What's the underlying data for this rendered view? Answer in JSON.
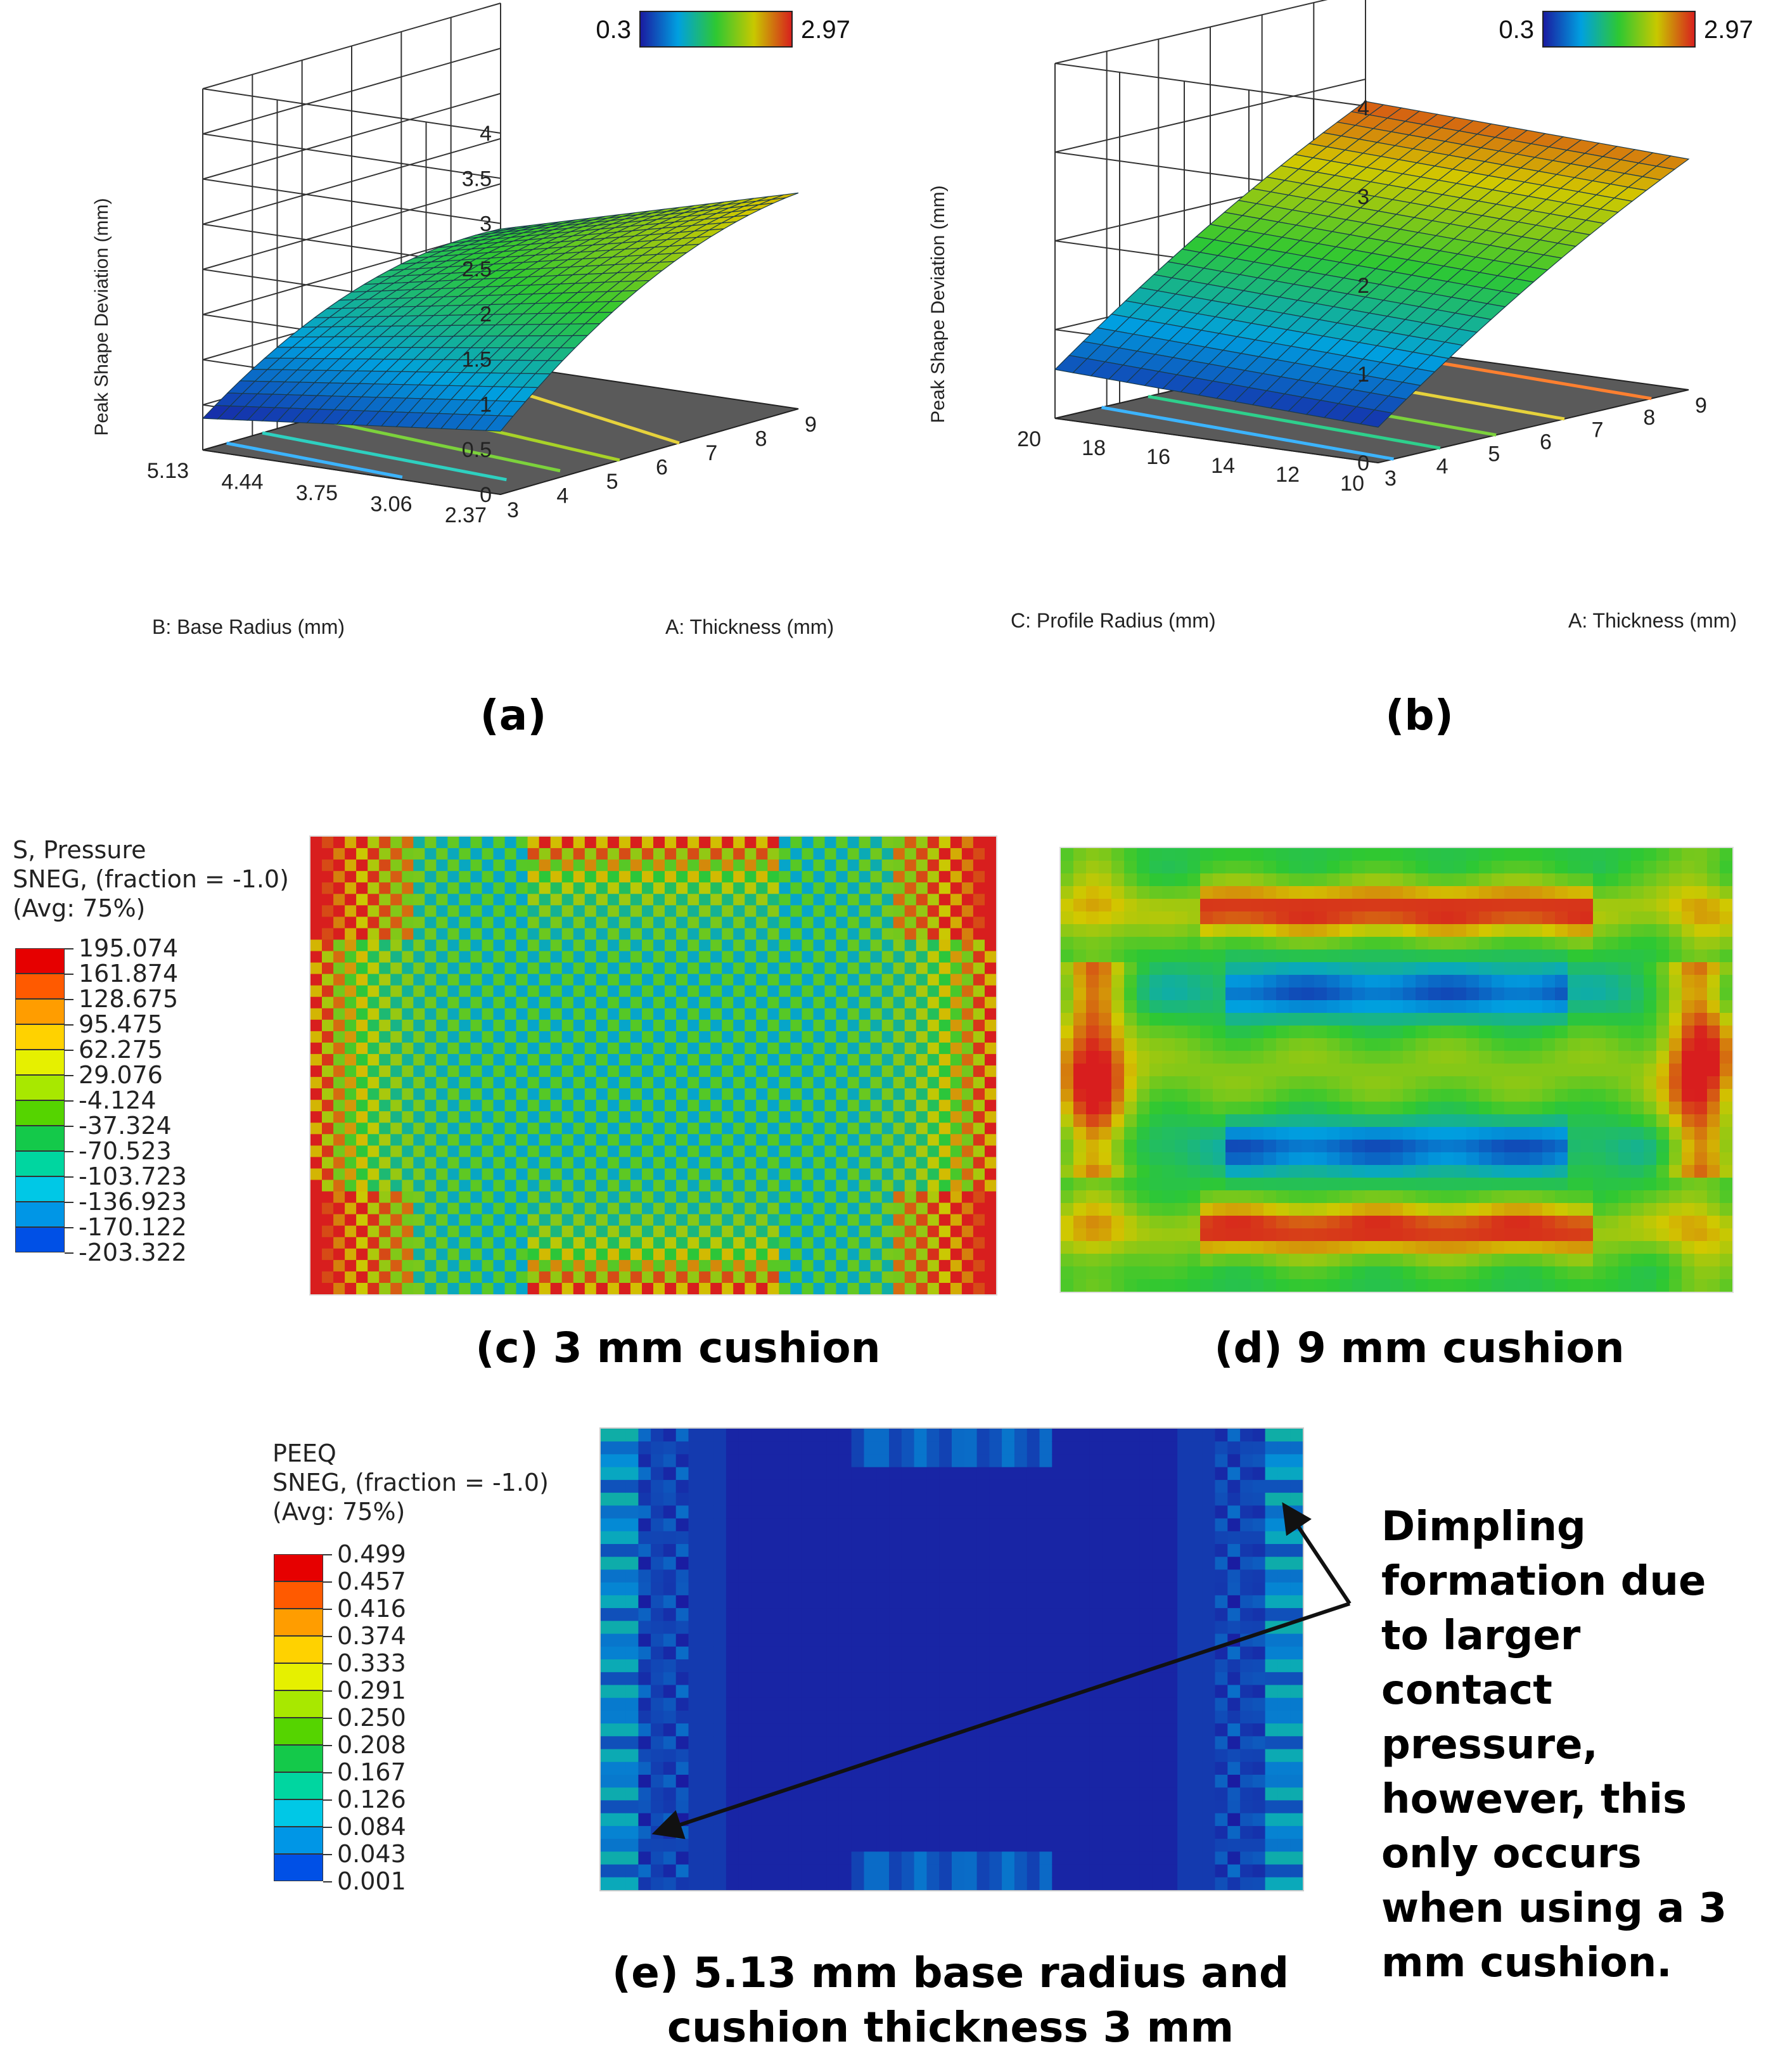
{
  "chart_data": [
    {
      "id": "a",
      "type": "surface3d",
      "xlabel": "A: Thickness (mm)",
      "ylabel": "B: Base Radius (mm)",
      "zlabel": "Peak Shape Deviation (mm)",
      "x_ticks": [
        "3",
        "4",
        "5",
        "6",
        "7",
        "8",
        "9"
      ],
      "y_ticks": [
        "2.37",
        "3.06",
        "3.75",
        "4.44",
        "5.13"
      ],
      "z_ticks": [
        "0",
        "0.5",
        "1",
        "1.5",
        "2",
        "2.5",
        "3",
        "3.5",
        "4"
      ],
      "zlim": [
        0,
        4
      ],
      "colorbar": {
        "min": "0.3",
        "max": "2.97"
      },
      "caption": "(a)"
    },
    {
      "id": "b",
      "type": "surface3d",
      "xlabel": "A: Thickness (mm)",
      "ylabel": "C: Profile Radius (mm)",
      "zlabel": "Peak Shape Deviation (mm)",
      "x_ticks": [
        "3",
        "4",
        "5",
        "6",
        "7",
        "8",
        "9"
      ],
      "y_ticks": [
        "10",
        "12",
        "14",
        "16",
        "18",
        "20"
      ],
      "z_ticks": [
        "0",
        "1",
        "2",
        "3",
        "4"
      ],
      "zlim": [
        0,
        4
      ],
      "colorbar": {
        "min": "0.3",
        "max": "2.97"
      },
      "caption": "(b)"
    },
    {
      "id": "c",
      "type": "heatmap",
      "legend_title": [
        "S, Pressure",
        "SNEG, (fraction = -1.0)",
        "(Avg: 75%)"
      ],
      "legend_values": [
        "195.074",
        "161.874",
        "128.675",
        "95.475",
        "62.275",
        "29.076",
        "-4.124",
        "-37.324",
        "-70.523",
        "-103.723",
        "-136.923",
        "-170.122",
        "-203.322"
      ],
      "caption": "(c) 3 mm cushion"
    },
    {
      "id": "d",
      "type": "heatmap",
      "caption": "(d) 9 mm cushion"
    },
    {
      "id": "e",
      "type": "heatmap",
      "legend_title": [
        "PEEQ",
        "SNEG, (fraction = -1.0)",
        "(Avg: 75%)"
      ],
      "legend_values": [
        "0.499",
        "0.457",
        "0.416",
        "0.374",
        "0.333",
        "0.291",
        "0.250",
        "0.208",
        "0.167",
        "0.126",
        "0.084",
        "0.043",
        "0.001"
      ],
      "caption_lines": [
        "(e) 5.13 mm base radius and",
        "cushion thickness 3 mm"
      ]
    }
  ],
  "annotation": [
    "Dimpling",
    "formation due",
    "to larger",
    "contact",
    "pressure,",
    "however, this",
    "only occurs",
    "when using a 3",
    "mm cushion."
  ],
  "colors": {
    "legend_bands": [
      "#e60000",
      "#ff5a00",
      "#ff9d00",
      "#ffd200",
      "#e6f000",
      "#a8e800",
      "#55d400",
      "#14c94a",
      "#00d6a0",
      "#00c8e6",
      "#0096e6",
      "#0050e6",
      "#0010c8"
    ],
    "floor": "#5a5a5a"
  }
}
